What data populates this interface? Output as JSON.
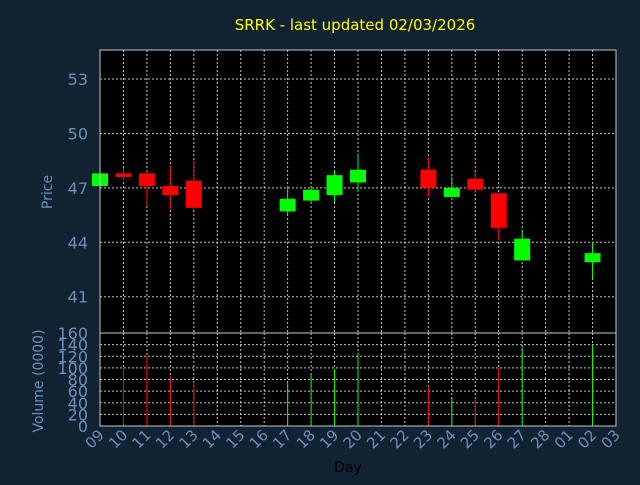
{
  "title": "SRRK - last updated 02/03/2026",
  "colors": {
    "background": "#112233",
    "panel": "#000000",
    "grid": "#c8c8c8",
    "title": "#ffff00",
    "axis_text": "#6c8fb8",
    "label_text": "#000000",
    "up": "#00ff00",
    "down": "#ff0000"
  },
  "chart_data": [
    {
      "type": "candlestick",
      "title": "SRRK - last updated 02/03/2026",
      "ylabel": "Price",
      "ylim": [
        39.0,
        54.6
      ],
      "yticks": [
        41,
        44,
        47,
        50,
        53
      ],
      "grid": true,
      "candles": [
        {
          "x": "09",
          "open": 47.1,
          "high": 47.9,
          "low": 47.0,
          "close": 47.8
        },
        {
          "x": "10",
          "open": 47.8,
          "high": 48.1,
          "low": 47.4,
          "close": 47.6
        },
        {
          "x": "11",
          "open": 47.8,
          "high": 47.9,
          "low": 46.0,
          "close": 47.1
        },
        {
          "x": "12",
          "open": 47.1,
          "high": 48.2,
          "low": 45.8,
          "close": 46.6
        },
        {
          "x": "13",
          "open": 47.4,
          "high": 48.5,
          "low": 45.8,
          "close": 45.9
        },
        {
          "x": "17",
          "open": 45.7,
          "high": 47.1,
          "low": 45.5,
          "close": 46.4
        },
        {
          "x": "18",
          "open": 46.3,
          "high": 47.0,
          "low": 46.2,
          "close": 46.9
        },
        {
          "x": "19",
          "open": 46.6,
          "high": 47.9,
          "low": 46.2,
          "close": 47.7
        },
        {
          "x": "20",
          "open": 47.3,
          "high": 48.9,
          "low": 46.8,
          "close": 48.0
        },
        {
          "x": "23",
          "open": 48.0,
          "high": 48.7,
          "low": 46.5,
          "close": 47.0
        },
        {
          "x": "24",
          "open": 46.5,
          "high": 47.6,
          "low": 46.5,
          "close": 47.0
        },
        {
          "x": "25",
          "open": 47.5,
          "high": 47.9,
          "low": 46.8,
          "close": 46.9
        },
        {
          "x": "26",
          "open": 46.7,
          "high": 46.7,
          "low": 44.1,
          "close": 44.8
        },
        {
          "x": "27",
          "open": 43.0,
          "high": 44.7,
          "low": 43.0,
          "close": 44.2
        },
        {
          "x": "02",
          "open": 42.9,
          "high": 44.0,
          "low": 42.0,
          "close": 43.4
        }
      ]
    },
    {
      "type": "bar",
      "xlabel": "Day",
      "ylabel": "Volume (0000)",
      "ylim": [
        0,
        160
      ],
      "yticks": [
        0,
        20,
        40,
        60,
        80,
        100,
        120,
        140,
        160
      ],
      "grid": true,
      "categories": [
        "09",
        "10",
        "11",
        "12",
        "13",
        "14",
        "15",
        "16",
        "17",
        "18",
        "19",
        "20",
        "21",
        "22",
        "23",
        "24",
        "25",
        "26",
        "27",
        "28",
        "01",
        "02",
        "03"
      ],
      "bars": [
        {
          "x": "10",
          "value": 100,
          "direction": "down"
        },
        {
          "x": "11",
          "value": 120,
          "direction": "down"
        },
        {
          "x": "12",
          "value": 85,
          "direction": "down"
        },
        {
          "x": "13",
          "value": 75,
          "direction": "down"
        },
        {
          "x": "17",
          "value": 75,
          "direction": "up"
        },
        {
          "x": "18",
          "value": 88,
          "direction": "up"
        },
        {
          "x": "19",
          "value": 98,
          "direction": "up"
        },
        {
          "x": "20",
          "value": 125,
          "direction": "up"
        },
        {
          "x": "23",
          "value": 68,
          "direction": "down"
        },
        {
          "x": "24",
          "value": 48,
          "direction": "up"
        },
        {
          "x": "25",
          "value": 48,
          "direction": "down"
        },
        {
          "x": "26",
          "value": 100,
          "direction": "down"
        },
        {
          "x": "27",
          "value": 135,
          "direction": "up"
        },
        {
          "x": "02",
          "value": 140,
          "direction": "up"
        }
      ]
    }
  ]
}
